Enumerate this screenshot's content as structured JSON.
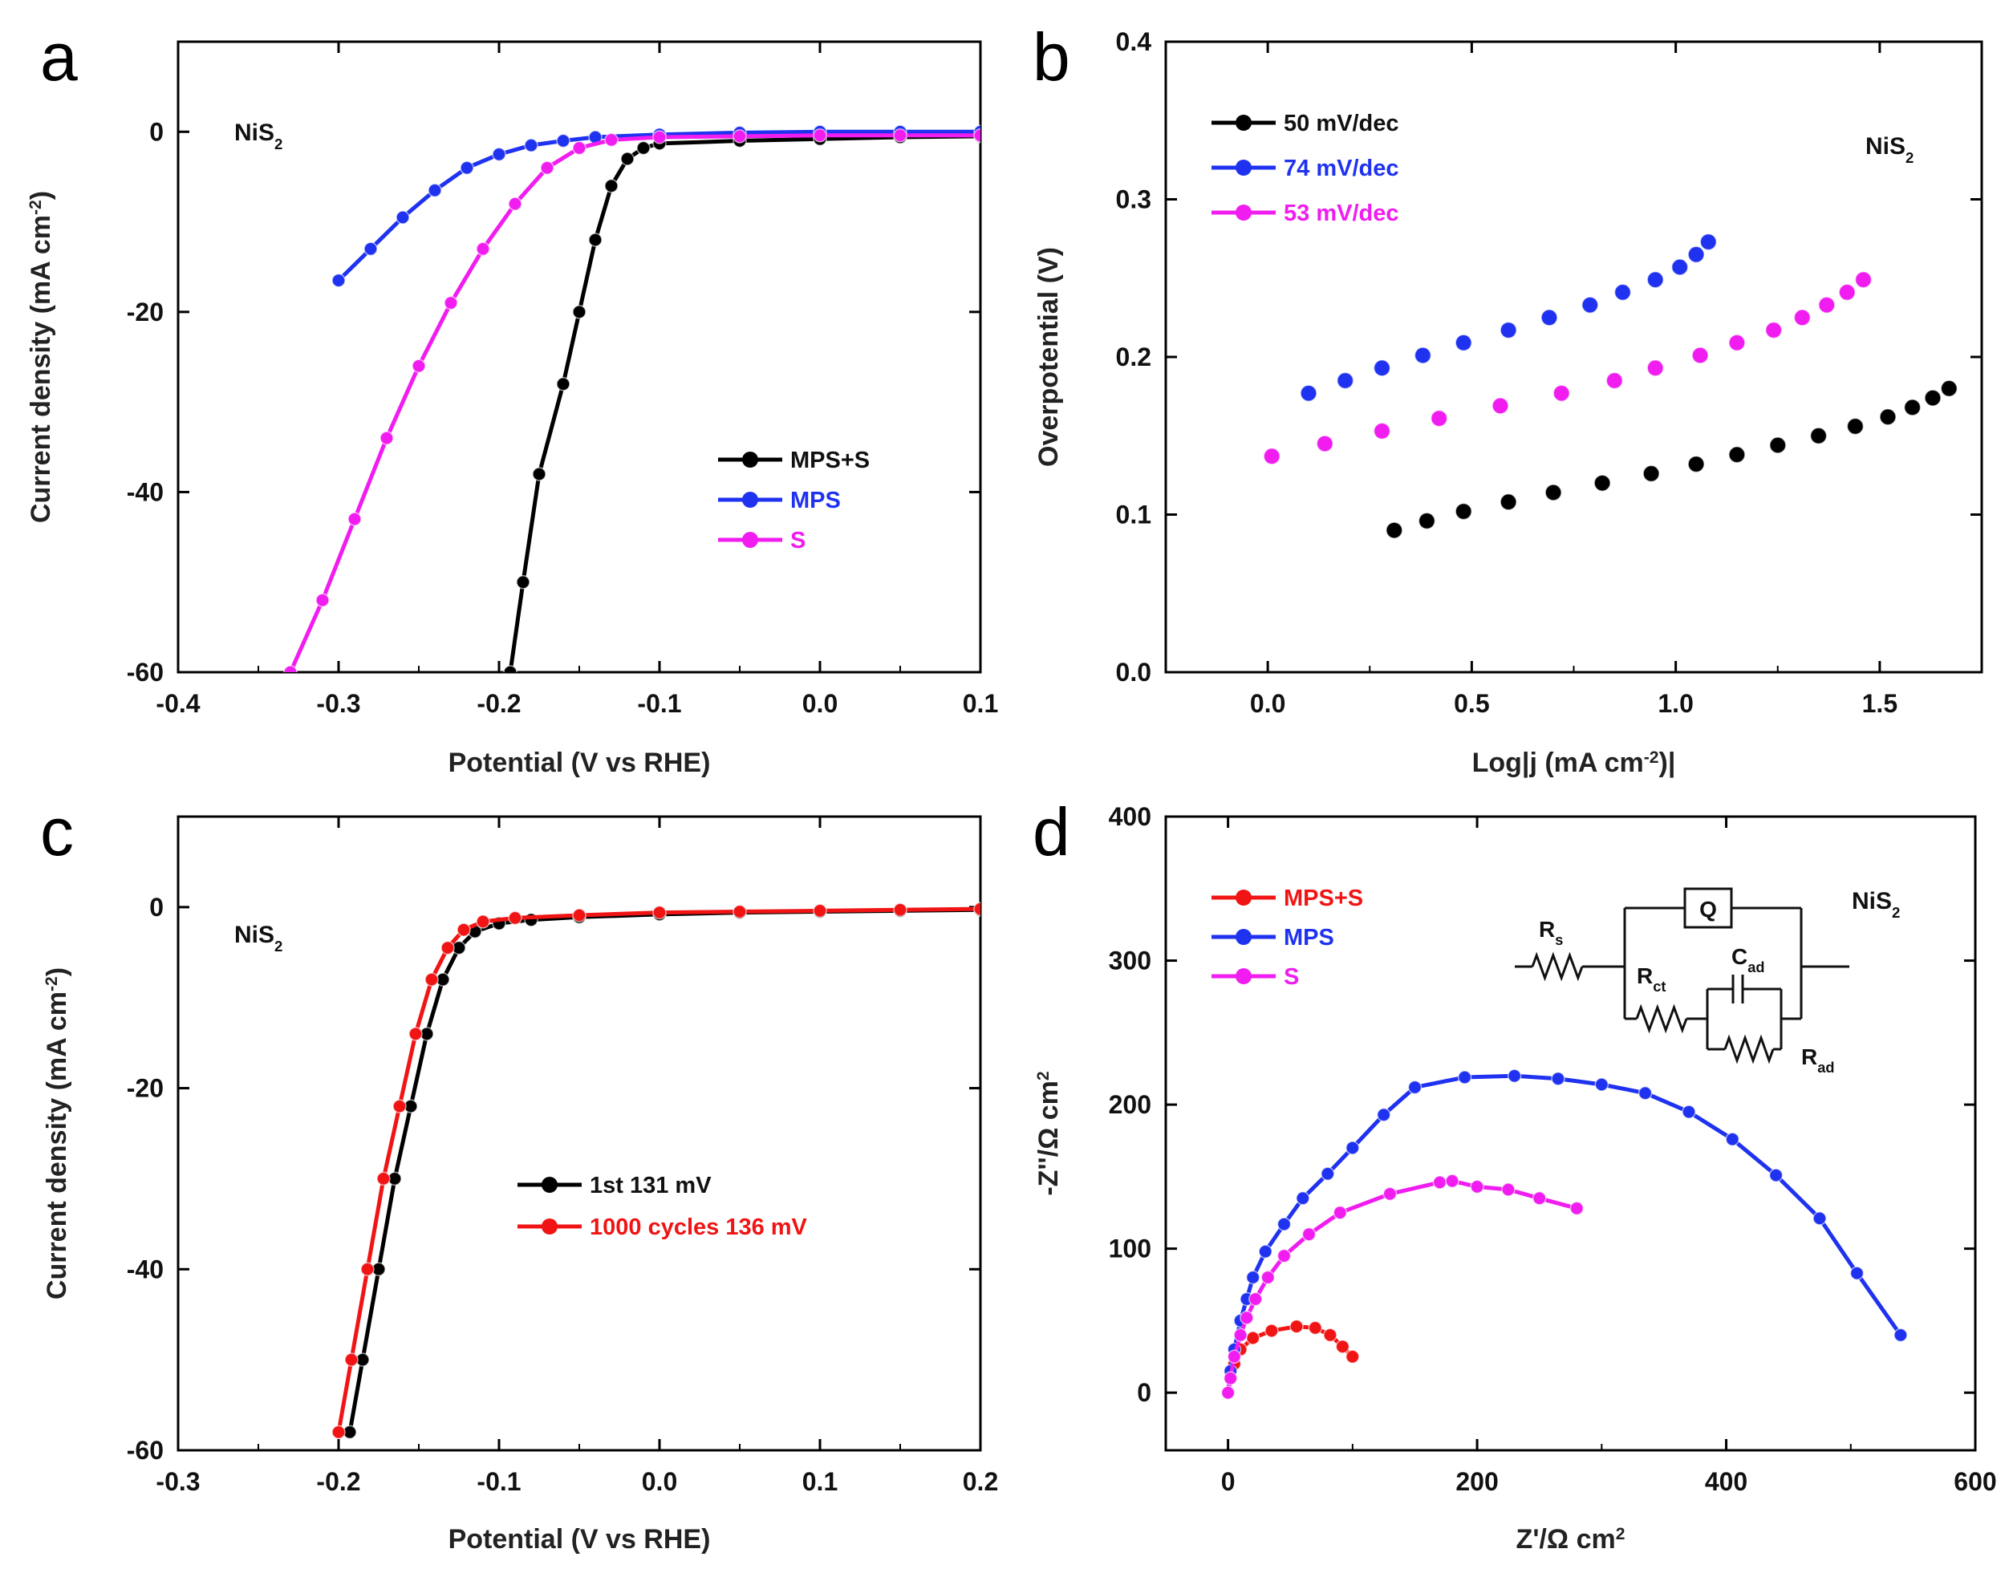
{
  "chart_data": [
    {
      "id": "a",
      "type": "line",
      "panel_label": "a",
      "annotation": "NiS2",
      "xlabel": "Potential (V vs RHE)",
      "ylabel": "Current density (mA cm-2)",
      "xlim": [
        -0.4,
        0.1
      ],
      "ylim": [
        -60,
        10
      ],
      "xticks": [
        -0.4,
        -0.3,
        -0.2,
        -0.1,
        0.0,
        0.1
      ],
      "xtick_labels": [
        "-0.4",
        "-0.3",
        "-0.2",
        "-0.1",
        "0.0",
        "0.1"
      ],
      "yticks": [
        -60,
        -40,
        -20,
        0
      ],
      "ytick_labels": [
        "-60",
        "-40",
        "-20",
        "0"
      ],
      "legend_position": "lower-right",
      "series": [
        {
          "name": "MPS+S",
          "color": "#000000",
          "points": [
            [
              -0.193,
              -60
            ],
            [
              -0.185,
              -50
            ],
            [
              -0.175,
              -38
            ],
            [
              -0.16,
              -28
            ],
            [
              -0.15,
              -20
            ],
            [
              -0.14,
              -12
            ],
            [
              -0.13,
              -6
            ],
            [
              -0.12,
              -3
            ],
            [
              -0.11,
              -1.8
            ],
            [
              -0.1,
              -1.3
            ],
            [
              -0.05,
              -1.0
            ],
            [
              0.0,
              -0.8
            ],
            [
              0.05,
              -0.6
            ],
            [
              0.1,
              -0.5
            ]
          ]
        },
        {
          "name": "MPS",
          "color": "#1f32f0",
          "points": [
            [
              -0.3,
              -16.5
            ],
            [
              -0.28,
              -13
            ],
            [
              -0.26,
              -9.5
            ],
            [
              -0.24,
              -6.5
            ],
            [
              -0.22,
              -4
            ],
            [
              -0.2,
              -2.5
            ],
            [
              -0.18,
              -1.5
            ],
            [
              -0.16,
              -1.0
            ],
            [
              -0.14,
              -0.6
            ],
            [
              -0.1,
              -0.3
            ],
            [
              -0.05,
              -0.1
            ],
            [
              0.0,
              0.0
            ],
            [
              0.05,
              0.0
            ],
            [
              0.1,
              0.0
            ]
          ]
        },
        {
          "name": "S",
          "color": "#f01cf0",
          "points": [
            [
              -0.33,
              -60
            ],
            [
              -0.31,
              -52
            ],
            [
              -0.29,
              -43
            ],
            [
              -0.27,
              -34
            ],
            [
              -0.25,
              -26
            ],
            [
              -0.23,
              -19
            ],
            [
              -0.21,
              -13
            ],
            [
              -0.19,
              -8
            ],
            [
              -0.17,
              -4
            ],
            [
              -0.15,
              -1.8
            ],
            [
              -0.13,
              -0.9
            ],
            [
              -0.1,
              -0.6
            ],
            [
              -0.05,
              -0.5
            ],
            [
              0.0,
              -0.4
            ],
            [
              0.05,
              -0.4
            ],
            [
              0.1,
              -0.4
            ]
          ]
        }
      ]
    },
    {
      "id": "b",
      "type": "scatter",
      "panel_label": "b",
      "annotation": "NiS2",
      "xlabel": "Log|j (mA cm-2)|",
      "ylabel": "Overpotential (V)",
      "xlim": [
        -0.25,
        1.75
      ],
      "ylim": [
        0.0,
        0.4
      ],
      "xticks": [
        0.0,
        0.5,
        1.0,
        1.5
      ],
      "xtick_labels": [
        "0.0",
        "0.5",
        "1.0",
        "1.5"
      ],
      "yticks": [
        0.0,
        0.1,
        0.2,
        0.3,
        0.4
      ],
      "ytick_labels": [
        "0.0",
        "0.1",
        "0.2",
        "0.3",
        "0.4"
      ],
      "legend_position": "top-left",
      "series": [
        {
          "name": "50 mV/dec",
          "color": "#000000",
          "points": [
            [
              0.31,
              0.09
            ],
            [
              0.39,
              0.096
            ],
            [
              0.48,
              0.102
            ],
            [
              0.59,
              0.108
            ],
            [
              0.7,
              0.114
            ],
            [
              0.82,
              0.12
            ],
            [
              0.94,
              0.126
            ],
            [
              1.05,
              0.132
            ],
            [
              1.15,
              0.138
            ],
            [
              1.25,
              0.144
            ],
            [
              1.35,
              0.15
            ],
            [
              1.44,
              0.156
            ],
            [
              1.52,
              0.162
            ],
            [
              1.58,
              0.168
            ],
            [
              1.63,
              0.174
            ],
            [
              1.67,
              0.18
            ]
          ]
        },
        {
          "name": "74 mV/dec",
          "color": "#1f32f0",
          "points": [
            [
              0.1,
              0.177
            ],
            [
              0.19,
              0.185
            ],
            [
              0.28,
              0.193
            ],
            [
              0.38,
              0.201
            ],
            [
              0.48,
              0.209
            ],
            [
              0.59,
              0.217
            ],
            [
              0.69,
              0.225
            ],
            [
              0.79,
              0.233
            ],
            [
              0.87,
              0.241
            ],
            [
              0.95,
              0.249
            ],
            [
              1.01,
              0.257
            ],
            [
              1.05,
              0.265
            ],
            [
              1.08,
              0.273
            ]
          ]
        },
        {
          "name": "53 mV/dec",
          "color": "#f01cf0",
          "points": [
            [
              0.01,
              0.137
            ],
            [
              0.14,
              0.145
            ],
            [
              0.28,
              0.153
            ],
            [
              0.42,
              0.161
            ],
            [
              0.57,
              0.169
            ],
            [
              0.72,
              0.177
            ],
            [
              0.85,
              0.185
            ],
            [
              0.95,
              0.193
            ],
            [
              1.06,
              0.201
            ],
            [
              1.15,
              0.209
            ],
            [
              1.24,
              0.217
            ],
            [
              1.31,
              0.225
            ],
            [
              1.37,
              0.233
            ],
            [
              1.42,
              0.241
            ],
            [
              1.46,
              0.249
            ]
          ]
        }
      ]
    },
    {
      "id": "c",
      "type": "line",
      "panel_label": "c",
      "annotation": "NiS2",
      "xlabel": "Potential (V vs RHE)",
      "ylabel": "Current density (mA cm-2)",
      "xlim": [
        -0.3,
        0.2
      ],
      "ylim": [
        -60,
        10
      ],
      "xticks": [
        -0.3,
        -0.2,
        -0.1,
        0.0,
        0.1,
        0.2
      ],
      "xtick_labels": [
        "-0.3",
        "-0.2",
        "-0.1",
        "0.0",
        "0.1",
        "0.2"
      ],
      "yticks": [
        -60,
        -40,
        -20,
        0
      ],
      "ytick_labels": [
        "-60",
        "-40",
        "-20",
        "0"
      ],
      "legend_position": "lower-center",
      "series": [
        {
          "name": "1st 131 mV",
          "color": "#000000",
          "points": [
            [
              -0.193,
              -58
            ],
            [
              -0.185,
              -50
            ],
            [
              -0.175,
              -40
            ],
            [
              -0.165,
              -30
            ],
            [
              -0.155,
              -22
            ],
            [
              -0.145,
              -14
            ],
            [
              -0.135,
              -8
            ],
            [
              -0.125,
              -4.5
            ],
            [
              -0.115,
              -2.7
            ],
            [
              -0.1,
              -1.8
            ],
            [
              -0.08,
              -1.4
            ],
            [
              -0.05,
              -1.1
            ],
            [
              0.0,
              -0.8
            ],
            [
              0.05,
              -0.6
            ],
            [
              0.1,
              -0.5
            ],
            [
              0.15,
              -0.4
            ],
            [
              0.2,
              -0.3
            ]
          ]
        },
        {
          "name": "1000 cycles 136 mV",
          "color": "#f01414",
          "points": [
            [
              -0.2,
              -58
            ],
            [
              -0.192,
              -50
            ],
            [
              -0.182,
              -40
            ],
            [
              -0.172,
              -30
            ],
            [
              -0.162,
              -22
            ],
            [
              -0.152,
              -14
            ],
            [
              -0.142,
              -8
            ],
            [
              -0.132,
              -4.5
            ],
            [
              -0.122,
              -2.5
            ],
            [
              -0.11,
              -1.6
            ],
            [
              -0.09,
              -1.2
            ],
            [
              -0.05,
              -0.9
            ],
            [
              0.0,
              -0.6
            ],
            [
              0.05,
              -0.5
            ],
            [
              0.1,
              -0.4
            ],
            [
              0.15,
              -0.3
            ],
            [
              0.2,
              -0.2
            ]
          ]
        }
      ]
    },
    {
      "id": "d",
      "type": "line",
      "panel_label": "d",
      "annotation": "NiS2",
      "xlabel": "Z'/Ω cm2",
      "ylabel": "-Z''/Ω cm2",
      "xlim": [
        -50,
        600
      ],
      "ylim": [
        -40,
        400
      ],
      "xticks": [
        0,
        200,
        400,
        600
      ],
      "xtick_labels": [
        "0",
        "200",
        "400",
        "600"
      ],
      "yticks": [
        0,
        100,
        200,
        300,
        400
      ],
      "ytick_labels": [
        "0",
        "100",
        "200",
        "300",
        "400"
      ],
      "legend_position": "top-left",
      "series": [
        {
          "name": "MPS+S",
          "color": "#f01414",
          "points": [
            [
              0,
              0
            ],
            [
              2,
              10
            ],
            [
              5,
              20
            ],
            [
              10,
              30
            ],
            [
              20,
              38
            ],
            [
              35,
              43
            ],
            [
              55,
              46
            ],
            [
              70,
              45
            ],
            [
              82,
              40
            ],
            [
              92,
              32
            ],
            [
              100,
              25
            ]
          ]
        },
        {
          "name": "MPS",
          "color": "#1f32f0",
          "points": [
            [
              0,
              0
            ],
            [
              2,
              15
            ],
            [
              5,
              30
            ],
            [
              10,
              50
            ],
            [
              15,
              65
            ],
            [
              20,
              80
            ],
            [
              30,
              98
            ],
            [
              45,
              117
            ],
            [
              60,
              135
            ],
            [
              80,
              152
            ],
            [
              100,
              170
            ],
            [
              125,
              193
            ],
            [
              150,
              212
            ],
            [
              190,
              219
            ],
            [
              230,
              220
            ],
            [
              265,
              218
            ],
            [
              300,
              214
            ],
            [
              335,
              208
            ],
            [
              370,
              195
            ],
            [
              405,
              176
            ],
            [
              440,
              151
            ],
            [
              475,
              121
            ],
            [
              505,
              83
            ],
            [
              540,
              40
            ]
          ]
        },
        {
          "name": "S",
          "color": "#f01cf0",
          "points": [
            [
              0,
              0
            ],
            [
              2,
              10
            ],
            [
              5,
              25
            ],
            [
              10,
              40
            ],
            [
              15,
              52
            ],
            [
              22,
              65
            ],
            [
              32,
              80
            ],
            [
              45,
              95
            ],
            [
              65,
              110
            ],
            [
              90,
              125
            ],
            [
              130,
              138
            ],
            [
              170,
              146
            ],
            [
              180,
              147
            ],
            [
              200,
              143
            ],
            [
              225,
              141
            ],
            [
              250,
              135
            ],
            [
              280,
              128
            ]
          ]
        }
      ]
    }
  ],
  "circuit": {
    "rs": "Rs",
    "q": "Q",
    "rct": "Rct",
    "cad": "Cad",
    "rad": "Rad"
  }
}
